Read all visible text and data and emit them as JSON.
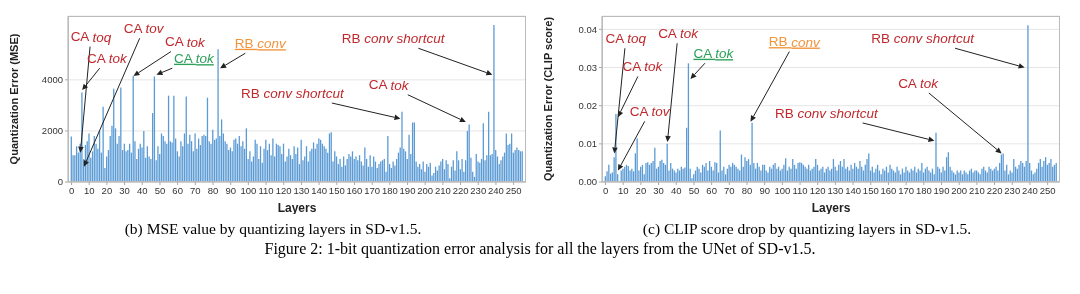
{
  "chart_data": [
    {
      "type": "bar",
      "xlabel": "Layers",
      "ylabel": "Quantization Error (MSE)",
      "color": "#5b9bd5",
      "grid": "y",
      "xlim": [
        -2,
        257
      ],
      "ylim": [
        0,
        6500
      ],
      "yticks": [
        0,
        2000,
        4000
      ],
      "xticks": [
        0,
        10,
        20,
        30,
        40,
        50,
        60,
        70,
        80,
        90,
        100,
        110,
        120,
        130,
        140,
        150,
        160,
        170,
        180,
        190,
        200,
        210,
        220,
        230,
        240,
        250
      ],
      "x": [
        0,
        1,
        2,
        3,
        4,
        5,
        6,
        7,
        8,
        9,
        10,
        11,
        12,
        13,
        14,
        15,
        16,
        17,
        18,
        19,
        20,
        21,
        22,
        23,
        24,
        25,
        26,
        27,
        28,
        29,
        30,
        31,
        32,
        33,
        34,
        35,
        36,
        37,
        38,
        39,
        40,
        41,
        42,
        43,
        44,
        45,
        46,
        47,
        48,
        49,
        50,
        51,
        52,
        53,
        54,
        55,
        56,
        57,
        58,
        59,
        60,
        61,
        62,
        63,
        64,
        65,
        66,
        67,
        68,
        69,
        70,
        71,
        72,
        73,
        74,
        75,
        76,
        77,
        78,
        79,
        80,
        81,
        82,
        83,
        84,
        85,
        86,
        87,
        88,
        89,
        90,
        91,
        92,
        93,
        94,
        95,
        96,
        97,
        98,
        99,
        100,
        101,
        102,
        103,
        104,
        105,
        106,
        107,
        108,
        109,
        110,
        111,
        112,
        113,
        114,
        115,
        116,
        117,
        118,
        119,
        120,
        121,
        122,
        123,
        124,
        125,
        126,
        127,
        128,
        129,
        130,
        131,
        132,
        133,
        134,
        135,
        136,
        137,
        138,
        139,
        140,
        141,
        142,
        143,
        144,
        145,
        146,
        147,
        148,
        149,
        150,
        151,
        152,
        153,
        154,
        155,
        156,
        157,
        158,
        159,
        160,
        161,
        162,
        163,
        164,
        165,
        166,
        167,
        168,
        169,
        170,
        171,
        172,
        173,
        174,
        175,
        176,
        177,
        178,
        179,
        180,
        181,
        182,
        183,
        184,
        185,
        186,
        187,
        188,
        189,
        190,
        191,
        192,
        193,
        194,
        195,
        196,
        197,
        198,
        199,
        200,
        201,
        202,
        203,
        204,
        205,
        206,
        207,
        208,
        209,
        210,
        211,
        212,
        213,
        214,
        215,
        216,
        217,
        218,
        219,
        220,
        221,
        222,
        223,
        224,
        225,
        226,
        227,
        228,
        229,
        230,
        231,
        232,
        233,
        234,
        235,
        236,
        237,
        238,
        239,
        240,
        241,
        242,
        243,
        244,
        245,
        246,
        247,
        248,
        249,
        250,
        251,
        252,
        253,
        254,
        255
      ],
      "values": [
        1780,
        1050,
        1050,
        1400,
        1150,
        1500,
        3500,
        900,
        1450,
        1600,
        1900,
        950,
        1200,
        1800,
        1500,
        1300,
        2000,
        1150,
        2950,
        550,
        1000,
        1250,
        1800,
        2200,
        3650,
        2100,
        1500,
        1800,
        3700,
        1250,
        1500,
        1200,
        1250,
        1500,
        1150,
        4150,
        1600,
        900,
        1300,
        1500,
        1350,
        2000,
        950,
        1400,
        1000,
        900,
        2700,
        4130,
        850,
        1400,
        1100,
        1900,
        1800,
        1600,
        1500,
        3380,
        1600,
        1550,
        3380,
        1700,
        1200,
        1000,
        1600,
        1400,
        1900,
        3350,
        1500,
        1850,
        1600,
        1200,
        1900,
        1300,
        1700,
        1450,
        1800,
        1850,
        1800,
        3300,
        1600,
        1500,
        2050,
        1650,
        1700,
        5200,
        1800,
        2450,
        1900,
        1600,
        1500,
        1250,
        1350,
        1200,
        1650,
        1700,
        1500,
        1800,
        1400,
        1600,
        1300,
        2100,
        900,
        1200,
        800,
        1000,
        1650,
        1500,
        900,
        1400,
        750,
        1300,
        1650,
        1250,
        1500,
        1050,
        1700,
        1000,
        1500,
        1450,
        1400,
        1100,
        1500,
        800,
        1000,
        1300,
        1050,
        900,
        1400,
        1100,
        1350,
        700,
        1650,
        850,
        1000,
        1400,
        800,
        1200,
        1300,
        1550,
        1300,
        1500,
        1700,
        1650,
        1500,
        1400,
        1300,
        1150,
        1900,
        1950,
        800,
        1200,
        1000,
        700,
        900,
        600,
        1000,
        650,
        900,
        1100,
        1000,
        1200,
        900,
        1000,
        850,
        1050,
        800,
        650,
        1350,
        900,
        600,
        1050,
        600,
        1000,
        800,
        550,
        700,
        800,
        850,
        900,
        400,
        1800,
        700,
        550,
        800,
        650,
        900,
        1150,
        1350,
        2750,
        1300,
        1200,
        900,
        1850,
        1100,
        2330,
        2330,
        800,
        600,
        700,
        500,
        800,
        400,
        700,
        600,
        750,
        250,
        350,
        600,
        450,
        650,
        800,
        900,
        500,
        850,
        700,
        150,
        600,
        850,
        450,
        1200,
        850,
        500,
        900,
        400,
        850,
        2000,
        2250,
        950,
        400,
        200,
        1100,
        800,
        750,
        900,
        2300,
        850,
        1050,
        2750,
        1050,
        1100,
        6150,
        1250,
        1000,
        700,
        850,
        1000,
        1150,
        1900,
        1450,
        1500,
        1900,
        1150,
        1250,
        1350,
        1250,
        1200,
        1200
      ],
      "annotations": [
        {
          "text": "CA toq",
          "x": 5,
          "y": 1150
        },
        {
          "text": "CA tok",
          "x": 6,
          "y": 3600
        },
        {
          "text": "CA tov",
          "x": 7,
          "y": 600
        },
        {
          "text": "CA tok",
          "x": 35,
          "y": 4150
        },
        {
          "text": "CA tok",
          "x": 48,
          "y": 4200
        },
        {
          "text": "RB conv",
          "x": 84,
          "y": 4450
        },
        {
          "text": "RB conv shortcut",
          "x": 238,
          "y": 4200
        },
        {
          "text": "RB conv shortcut",
          "x": 186,
          "y": 2480
        },
        {
          "text": "CA tok",
          "x": 223,
          "y": 2350
        },
        "(b) MSE value by quantizing layers in SD-v1.5."
      ]
    },
    {
      "type": "bar",
      "xlabel": "Layers",
      "ylabel": "Quantization Error (CLIP score)",
      "color": "#5b9bd5",
      "grid": "y",
      "xlim": [
        -2,
        257
      ],
      "ylim": [
        0,
        0.0435
      ],
      "yticks": [
        {
          "value": 0,
          "label": "0.00"
        },
        {
          "value": 0.01,
          "label": "0.01"
        },
        {
          "value": 0.02,
          "label": "0.02"
        },
        {
          "value": 0.03,
          "label": "0.03"
        },
        {
          "value": 0.04,
          "label": "0.04"
        }
      ],
      "xticks": [
        0,
        10,
        20,
        30,
        40,
        50,
        60,
        70,
        80,
        90,
        100,
        110,
        120,
        130,
        140,
        150,
        160,
        170,
        180,
        190,
        200,
        210,
        220,
        230,
        240,
        250
      ],
      "x": [
        0,
        1,
        2,
        3,
        4,
        5,
        6,
        7,
        8,
        9,
        10,
        11,
        12,
        13,
        14,
        15,
        16,
        17,
        18,
        19,
        20,
        21,
        22,
        23,
        24,
        25,
        26,
        27,
        28,
        29,
        30,
        31,
        32,
        33,
        34,
        35,
        36,
        37,
        38,
        39,
        40,
        41,
        42,
        43,
        44,
        45,
        46,
        47,
        48,
        49,
        50,
        51,
        52,
        53,
        54,
        55,
        56,
        57,
        58,
        59,
        60,
        61,
        62,
        63,
        64,
        65,
        66,
        67,
        68,
        69,
        70,
        71,
        72,
        73,
        74,
        75,
        76,
        77,
        78,
        79,
        80,
        81,
        82,
        83,
        84,
        85,
        86,
        87,
        88,
        89,
        90,
        91,
        92,
        93,
        94,
        95,
        96,
        97,
        98,
        99,
        100,
        101,
        102,
        103,
        104,
        105,
        106,
        107,
        108,
        109,
        110,
        111,
        112,
        113,
        114,
        115,
        116,
        117,
        118,
        119,
        120,
        121,
        122,
        123,
        124,
        125,
        126,
        127,
        128,
        129,
        130,
        131,
        132,
        133,
        134,
        135,
        136,
        137,
        138,
        139,
        140,
        141,
        142,
        143,
        144,
        145,
        146,
        147,
        148,
        149,
        150,
        151,
        152,
        153,
        154,
        155,
        156,
        157,
        158,
        159,
        160,
        161,
        162,
        163,
        164,
        165,
        166,
        167,
        168,
        169,
        170,
        171,
        172,
        173,
        174,
        175,
        176,
        177,
        178,
        179,
        180,
        181,
        182,
        183,
        184,
        185,
        186,
        187,
        188,
        189,
        190,
        191,
        192,
        193,
        194,
        195,
        196,
        197,
        198,
        199,
        200,
        201,
        202,
        203,
        204,
        205,
        206,
        207,
        208,
        209,
        210,
        211,
        212,
        213,
        214,
        215,
        216,
        217,
        218,
        219,
        220,
        221,
        222,
        223,
        224,
        225,
        226,
        227,
        228,
        229,
        230,
        231,
        232,
        233,
        234,
        235,
        236,
        237,
        238,
        239,
        240,
        241,
        242,
        243,
        244,
        245,
        246,
        247,
        248,
        249,
        250,
        251,
        252,
        253,
        254,
        255
      ],
      "values": [
        0.0015,
        0.0028,
        0.0045,
        0.0022,
        0.0025,
        0.0065,
        0.0178,
        0.002,
        null,
        0.003,
        0.0035,
        0.004,
        0.0045,
        0.0042,
        0.003,
        0.0035,
        0.0028,
        0.0075,
        0.0114,
        0.003,
        0.004,
        0.0045,
        0.002,
        0.005,
        0.0052,
        0.0045,
        0.005,
        0.0055,
        0.009,
        0.0035,
        0.004,
        0.0055,
        0.0058,
        0.005,
        0.0045,
        0.01,
        0.003,
        0.005,
        0.0035,
        0.003,
        0.0025,
        0.0035,
        0.003,
        0.004,
        0.0035,
        0.0038,
        0.0142,
        0.0311,
        0.0035,
        0.001,
        0.002,
        0.003,
        0.004,
        0.0035,
        0.0025,
        0.0045,
        0.004,
        0.005,
        0.003,
        0.0055,
        0.004,
        0.003,
        0.0052,
        0.005,
        0.0025,
        0.0135,
        0.003,
        0.004,
        0.002,
        0.0035,
        0.0045,
        0.004,
        0.005,
        0.0045,
        0.004,
        0.0035,
        0.003,
        0.0072,
        0.004,
        0.0065,
        0.0055,
        0.006,
        0.0045,
        0.0155,
        0.005,
        0.0035,
        0.005,
        0.004,
        0.003,
        0.0045,
        0.0045,
        0.003,
        0.0025,
        0.004,
        0.0035,
        0.0045,
        0.005,
        0.0035,
        0.004,
        0.003,
        0.0035,
        0.0045,
        0.0062,
        0.003,
        0.004,
        0.0035,
        0.006,
        0.0045,
        0.0035,
        0.005,
        0.0052,
        0.005,
        0.0045,
        0.004,
        0.0035,
        0.0045,
        0.003,
        0.0035,
        0.004,
        0.006,
        0.0045,
        0.003,
        0.0035,
        0.004,
        0.0025,
        0.0035,
        0.004,
        0.003,
        0.0035,
        0.006,
        0.004,
        0.003,
        0.0045,
        0.0055,
        0.004,
        0.006,
        0.0035,
        0.004,
        0.003,
        0.0045,
        0.0035,
        0.005,
        0.004,
        0.0035,
        0.0055,
        0.004,
        0.003,
        0.0045,
        0.006,
        0.0075,
        0.003,
        0.004,
        0.0025,
        0.0035,
        0.0045,
        0.003,
        0.002,
        0.0035,
        0.003,
        0.004,
        0.0025,
        0.0045,
        0.0035,
        0.003,
        0.0025,
        0.004,
        0.003,
        0.002,
        0.0035,
        0.0025,
        0.004,
        0.003,
        0.0025,
        0.0035,
        0.003,
        0.004,
        0.0025,
        0.0035,
        0.003,
        0.005,
        0.0025,
        0.0035,
        0.004,
        0.003,
        0.0025,
        0.0035,
        0.002,
        0.0129,
        0.004,
        0.0035,
        0.0025,
        0.004,
        0.003,
        0.0065,
        0.0078,
        0.004,
        0.003,
        0.0025,
        0.002,
        0.003,
        0.0025,
        0.003,
        0.002,
        0.003,
        0.0025,
        0.002,
        0.003,
        0.0035,
        0.0025,
        0.003,
        0.003,
        0.0025,
        0.002,
        0.0035,
        0.004,
        0.003,
        0.0025,
        0.004,
        0.0035,
        0.003,
        0.0035,
        0.004,
        0.003,
        0.005,
        0.0072,
        0.0075,
        0.003,
        0.0045,
        0.002,
        0.003,
        0.0025,
        0.006,
        0.004,
        0.0035,
        0.0045,
        0.0055,
        0.005,
        0.004,
        0.0055,
        0.0411,
        0.005,
        0.003,
        0.002,
        0.0025,
        0.0035,
        0.005,
        0.006,
        0.004,
        0.0055,
        0.0065,
        0.0045,
        0.005,
        0.006,
        0.004,
        0.0045,
        0.005
      ],
      "annotations": [
        {
          "text": "CA toq",
          "x": 5,
          "y": 0.0075
        },
        {
          "text": "CA tok",
          "x": 7,
          "y": 0.017
        },
        {
          "text": "CA tov",
          "x": 7,
          "y": 0.003
        },
        {
          "text": "CA tok",
          "x": 35,
          "y": 0.0105
        },
        {
          "text": "CA tok",
          "x": 48,
          "y": 0.027
        },
        {
          "text": "RB conv",
          "x": 82,
          "y": 0.0158
        },
        {
          "text": "RB conv shortcut",
          "x": 237,
          "y": 0.03
        },
        {
          "text": "RB conv shortcut",
          "x": 186,
          "y": 0.0108
        },
        {
          "text": "CA tok",
          "x": 224,
          "y": 0.0075
        },
        "(c) CLIP score drop by quantizing layers in SD-v1.5.",
        "Figure 2: 1-bit quantization error analysis for all the layers from the UNet of SD-v1.5."
      ]
    }
  ]
}
